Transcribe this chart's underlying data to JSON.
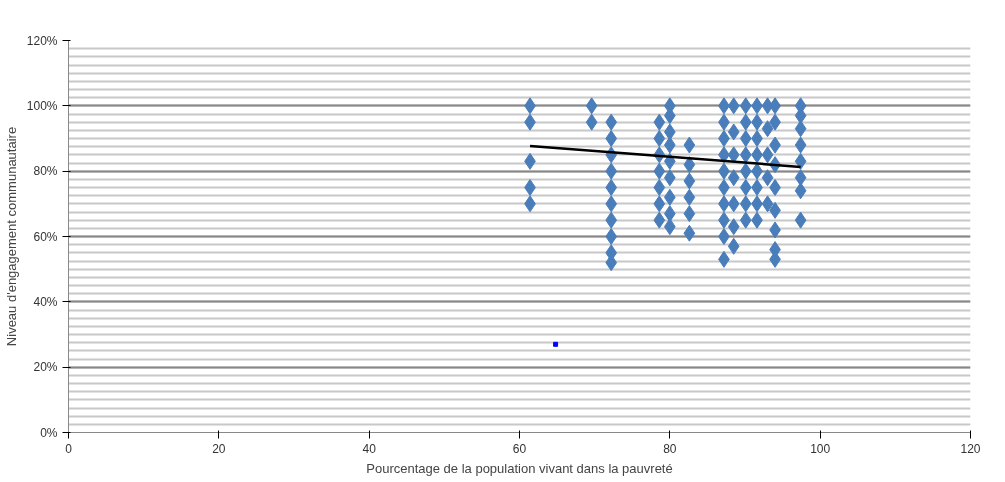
{
  "chart_data": {
    "type": "scatter",
    "xlabel": "Pourcentage de la population vivant dans la pauvreté",
    "ylabel": "Niveau d'engagement communautaire",
    "xlim": [
      0,
      120
    ],
    "xticks": [
      0,
      20,
      40,
      60,
      80,
      100,
      120
    ],
    "ylim": [
      0,
      120
    ],
    "yticks": [
      {
        "value": 0,
        "label": "0%"
      },
      {
        "value": 20,
        "label": "20%"
      },
      {
        "value": 40,
        "label": "40%"
      },
      {
        "value": 60,
        "label": "60%"
      },
      {
        "value": 80,
        "label": "80%"
      },
      {
        "value": 100,
        "label": "100%"
      },
      {
        "value": 120,
        "label": "120%"
      }
    ],
    "grid": "y",
    "marker": "diamond",
    "series": [
      {
        "color": "#4a7ebb",
        "x": [
          61.4,
          61.4,
          61.4,
          61.4,
          61.4,
          69.6,
          69.6,
          72.2,
          72.2,
          72.2,
          72.2,
          72.2,
          72.2,
          72.2,
          72.2,
          72.2,
          72.2,
          78.6,
          78.6,
          78.6,
          78.6,
          78.6,
          78.6,
          78.6,
          80,
          80,
          80,
          80,
          80,
          80,
          80,
          80,
          80,
          82.6,
          82.6,
          82.6,
          82.6,
          82.6,
          82.6,
          87.2,
          87.2,
          87.2,
          87.2,
          87.2,
          87.2,
          87.2,
          87.2,
          87.2,
          87.2,
          88.5,
          88.5,
          88.5,
          88.5,
          88.5,
          88.5,
          88.5,
          90.1,
          90.1,
          90.1,
          90.1,
          90.1,
          90.1,
          90.1,
          90.1,
          91.6,
          91.6,
          91.6,
          91.6,
          91.6,
          91.6,
          91.6,
          91.6,
          93,
          93,
          93,
          93,
          93,
          94,
          94,
          94,
          94,
          94,
          94,
          94,
          94,
          94,
          97.4,
          97.4,
          97.4,
          97.4,
          97.4,
          97.4,
          97.4,
          97.4
        ],
        "values": [
          100,
          95,
          83,
          75,
          70,
          100,
          95,
          95,
          90,
          85,
          80,
          75,
          70,
          65,
          60,
          55,
          52,
          95,
          90,
          85,
          80,
          75,
          70,
          65,
          100,
          97,
          92,
          88,
          83,
          78,
          72,
          67,
          63,
          88,
          82,
          77,
          72,
          67,
          61,
          100,
          95,
          90,
          85,
          80,
          75,
          70,
          65,
          60,
          53,
          100,
          92,
          85,
          78,
          70,
          63,
          57,
          100,
          95,
          90,
          85,
          80,
          75,
          70,
          65,
          100,
          95,
          90,
          85,
          80,
          75,
          70,
          65,
          100,
          93,
          85,
          78,
          70,
          100,
          95,
          88,
          82,
          75,
          68,
          62,
          56,
          53,
          100,
          97,
          93,
          88,
          83,
          78,
          74,
          65
        ]
      },
      {
        "type": "scatter",
        "color": "#0000ff",
        "marker": "square",
        "x": [
          64.8
        ],
        "values": [
          27
        ]
      },
      {
        "type": "line",
        "color": "#000000",
        "line_style": "solid",
        "marker": "none",
        "x": [
          61.4,
          97.4
        ],
        "values": [
          87.7,
          81.3
        ]
      }
    ]
  }
}
